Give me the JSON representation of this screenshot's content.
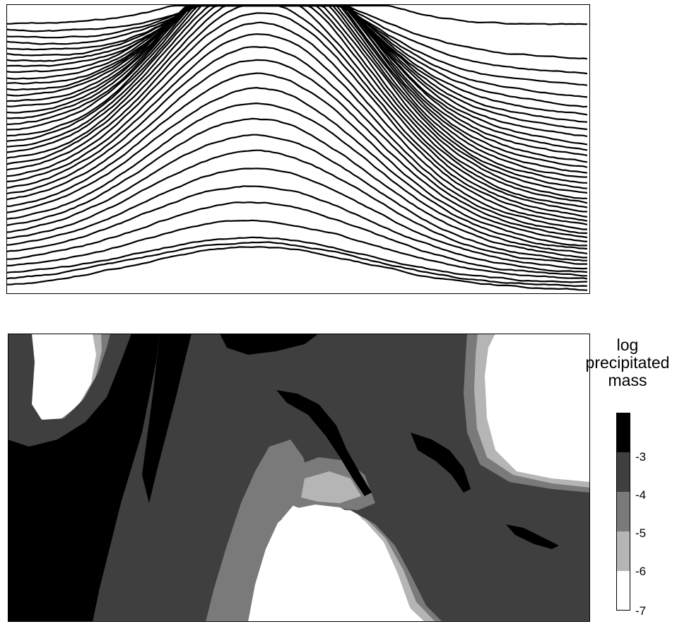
{
  "chart_data": [
    {
      "type": "line",
      "title": "",
      "xlabel": "",
      "ylabel": "",
      "grid": false,
      "legend": "none"
    },
    {
      "type": "heatmap",
      "title": "",
      "xlabel": "",
      "ylabel": "",
      "colorbar": {
        "title_lines": [
          "log",
          "precipitated",
          "mass"
        ],
        "ticks": [
          "-3",
          "-4",
          "-5",
          "-6",
          "-7"
        ],
        "levels": [
          {
            "range": [
              -3,
              -2
            ],
            "color": "#000000"
          },
          {
            "range": [
              -4,
              -3
            ],
            "color": "#3f3f3f"
          },
          {
            "range": [
              -5,
              -4
            ],
            "color": "#7a7a7a"
          },
          {
            "range": [
              -6,
              -5
            ],
            "color": "#b5b5b5"
          },
          {
            "range": [
              -7,
              -6
            ],
            "color": "#ffffff"
          }
        ],
        "placement": "right"
      }
    }
  ]
}
